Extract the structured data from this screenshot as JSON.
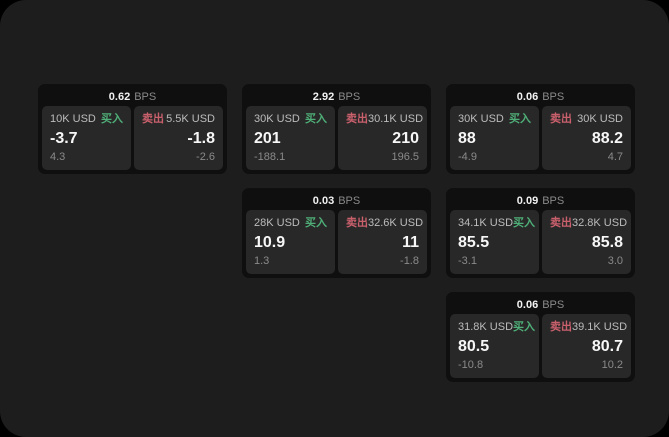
{
  "window": {
    "background": "#000000",
    "panel_background": "#1d1d1d"
  },
  "labels": {
    "bps_unit": "BPS",
    "buy": "买入",
    "sell": "卖出"
  },
  "colors": {
    "buy_green": "#4fae77",
    "sell_red": "#c9606c",
    "card_background": "#0f0f0f",
    "tile_background": "#282828",
    "value_white": "#f7f7f7",
    "muted_gray": "#8a8a8a"
  },
  "cards": [
    {
      "bps": "0.62",
      "buy": {
        "amount": "10K USD",
        "value": "-3.7",
        "delta": "4.3"
      },
      "sell": {
        "amount": "5.5K USD",
        "value": "-1.8",
        "delta": "-2.6"
      }
    },
    {
      "bps": "2.92",
      "buy": {
        "amount": "30K USD",
        "value": "201",
        "delta": "-188.1"
      },
      "sell": {
        "amount": "30.1K USD",
        "value": "210",
        "delta": "196.5"
      }
    },
    {
      "bps": "0.06",
      "buy": {
        "amount": "30K USD",
        "value": "88",
        "delta": "-4.9"
      },
      "sell": {
        "amount": "30K USD",
        "value": "88.2",
        "delta": "4.7"
      }
    },
    {
      "bps": "0.03",
      "buy": {
        "amount": "28K USD",
        "value": "10.9",
        "delta": "1.3"
      },
      "sell": {
        "amount": "32.6K USD",
        "value": "11",
        "delta": "-1.8"
      }
    },
    {
      "bps": "0.09",
      "buy": {
        "amount": "34.1K USD",
        "value": "85.5",
        "delta": "-3.1"
      },
      "sell": {
        "amount": "32.8K USD",
        "value": "85.8",
        "delta": "3.0"
      }
    },
    {
      "bps": "0.06",
      "buy": {
        "amount": "31.8K USD",
        "value": "80.5",
        "delta": "-10.8"
      },
      "sell": {
        "amount": "39.1K USD",
        "value": "80.7",
        "delta": "10.2"
      }
    }
  ]
}
